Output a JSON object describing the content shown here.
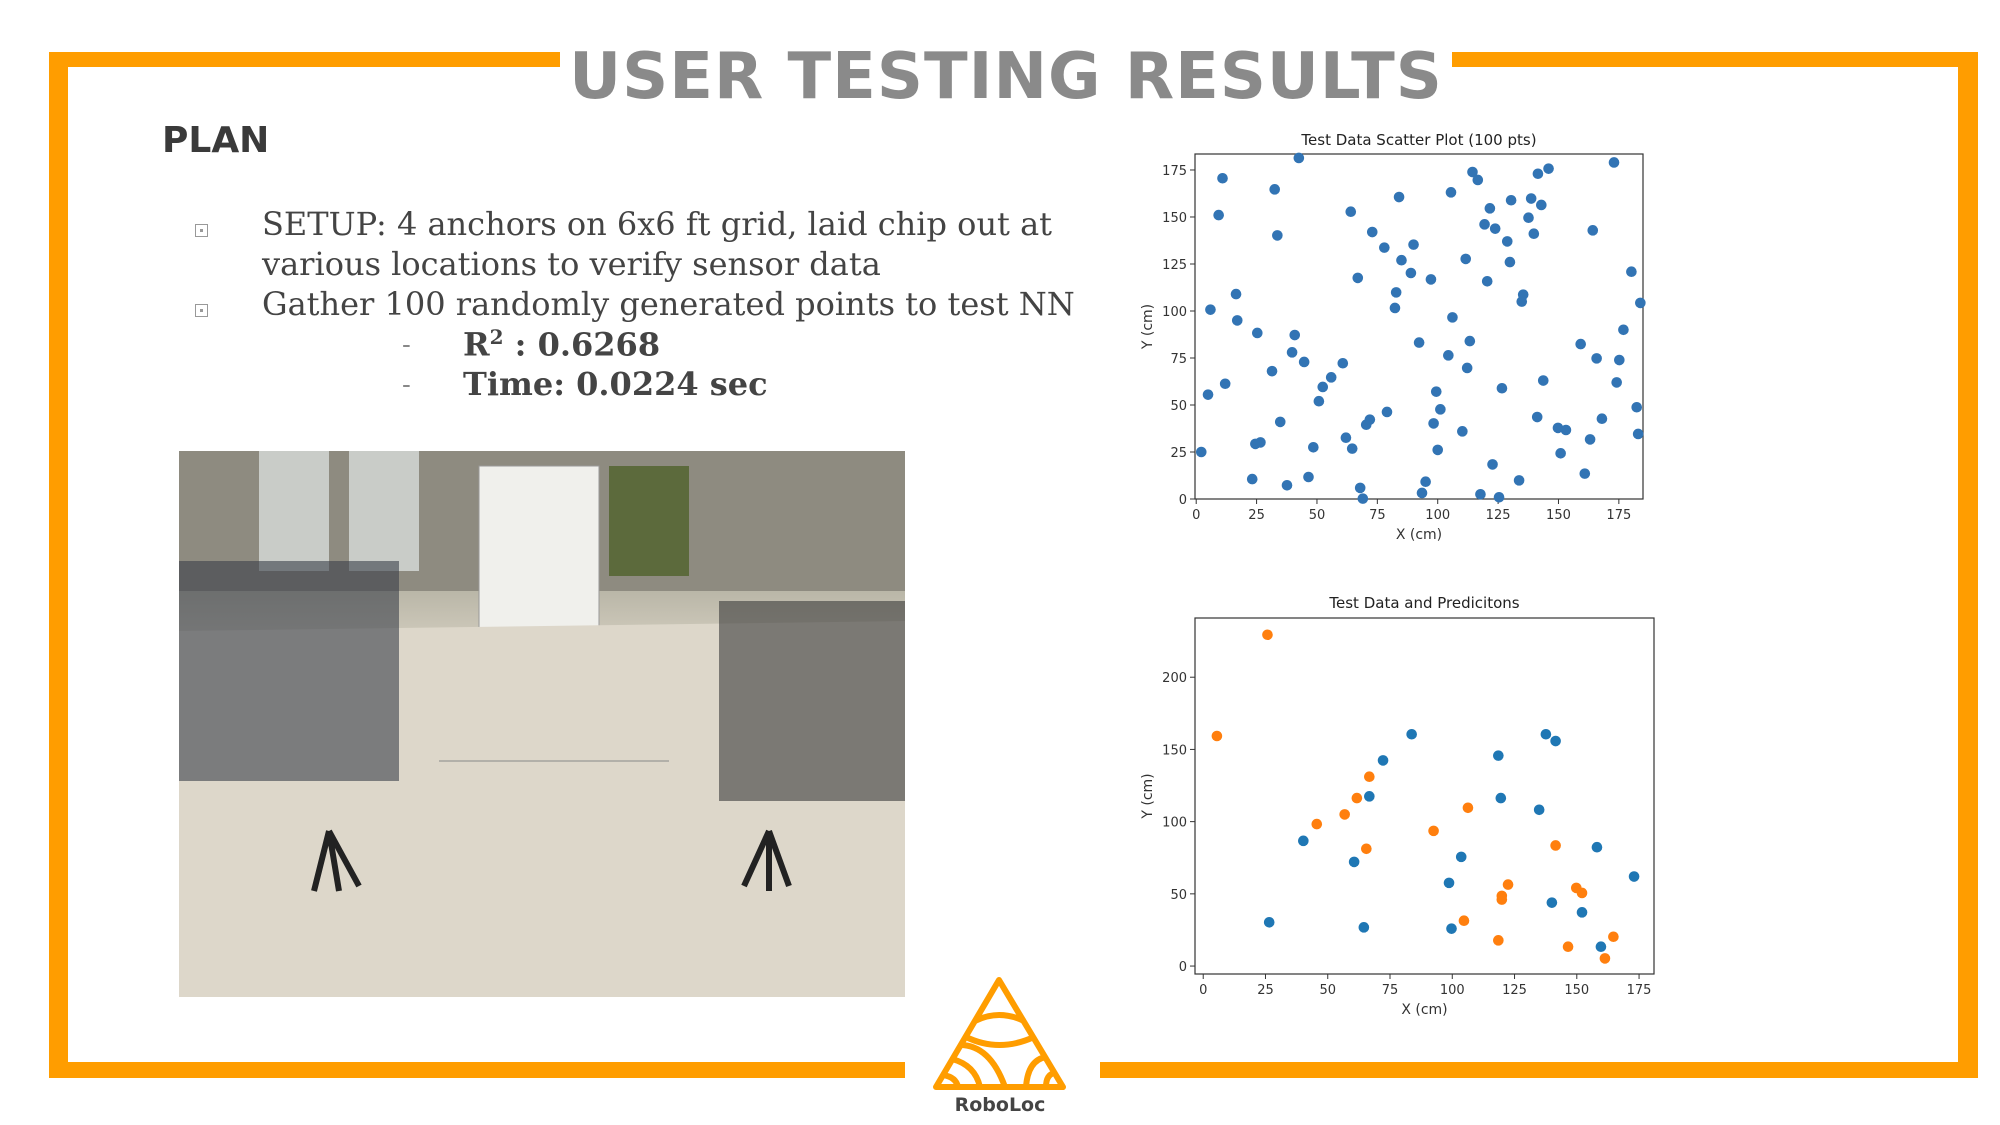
{
  "slide": {
    "title": "USER TESTING RESULTS",
    "section_heading": "PLAN",
    "bullets": [
      {
        "line1": "SETUP: 4 anchors on 6x6 ft grid, laid chip out at",
        "line2": "various locations to verify sensor data"
      },
      {
        "line1": "Gather 100 randomly generated points to test NN"
      }
    ],
    "sub_bullets": {
      "r2_label": "R",
      "r2_sup": "2",
      "r2_value": " : 0.6268",
      "time": "Time: 0.0224 sec"
    },
    "photo_alt": "photo",
    "logo_text": "RoboLoc",
    "accent_color": "#ff9d00"
  },
  "chart_data": [
    {
      "type": "scatter",
      "title": "Test Data Scatter Plot (100 pts)",
      "xlabel": "X (cm)",
      "ylabel": "Y (cm)",
      "xlim": [
        -0.5,
        185
      ],
      "ylim": [
        0,
        183.5
      ],
      "xticks": [
        0,
        25,
        50,
        75,
        100,
        125,
        150,
        175
      ],
      "yticks": [
        0,
        25,
        50,
        75,
        100,
        125,
        150,
        175
      ],
      "grid": false,
      "series": [
        {
          "color": "#3274b4",
          "points": [
            [
              2.1,
              25
            ],
            [
              4.9,
              55.5
            ],
            [
              5.9,
              100.7
            ],
            [
              9.3,
              151
            ],
            [
              10.9,
              170.6
            ],
            [
              12,
              61.3
            ],
            [
              16.5,
              109
            ],
            [
              17,
              95
            ],
            [
              23.2,
              10.6
            ],
            [
              24.5,
              29.3
            ],
            [
              26.6,
              30.1
            ],
            [
              25.3,
              88.3
            ],
            [
              31.4,
              68
            ],
            [
              32.5,
              164.7
            ],
            [
              33.6,
              140.2
            ],
            [
              34.8,
              41
            ],
            [
              37.6,
              7.3
            ],
            [
              39.7,
              78
            ],
            [
              40.8,
              87.2
            ],
            [
              42.5,
              181.4
            ],
            [
              44.7,
              72.9
            ],
            [
              46.5,
              11.7
            ],
            [
              48.5,
              27.5
            ],
            [
              50.8,
              52
            ],
            [
              52.4,
              59.6
            ],
            [
              55.9,
              64.7
            ],
            [
              60.7,
              72.2
            ],
            [
              62,
              32.6
            ],
            [
              64,
              152.8
            ],
            [
              64.6,
              26.8
            ],
            [
              66.9,
              117.6
            ],
            [
              67.9,
              5.9
            ],
            [
              69,
              0.2
            ],
            [
              70.4,
              39.5
            ],
            [
              71.9,
              42.2
            ],
            [
              72.9,
              142
            ],
            [
              77.9,
              133.7
            ],
            [
              79,
              46.3
            ],
            [
              82.3,
              101.6
            ],
            [
              82.8,
              109.9
            ],
            [
              84,
              160.6
            ],
            [
              85,
              127
            ],
            [
              88.9,
              120.2
            ],
            [
              90,
              135.3
            ],
            [
              92.3,
              83.2
            ],
            [
              93.5,
              3.2
            ],
            [
              95,
              9.2
            ],
            [
              97.2,
              116.8
            ],
            [
              98.3,
              40.2
            ],
            [
              99.4,
              57.1
            ],
            [
              100,
              26.1
            ],
            [
              101.1,
              47.7
            ],
            [
              105.5,
              163.1
            ],
            [
              106.1,
              96.6
            ],
            [
              104.4,
              76.4
            ],
            [
              110.2,
              36
            ],
            [
              111.6,
              127.7
            ],
            [
              112.2,
              69.7
            ],
            [
              113.3,
              84
            ],
            [
              114.4,
              173.9
            ],
            [
              116.6,
              169.7
            ],
            [
              117.7,
              2.5
            ],
            [
              119.4,
              146.1
            ],
            [
              120.5,
              115.8
            ],
            [
              121.6,
              154.6
            ],
            [
              122.7,
              18.4
            ],
            [
              123.8,
              143.8
            ],
            [
              125.4,
              0.9
            ],
            [
              126.6,
              58.9
            ],
            [
              128.8,
              137
            ],
            [
              129.9,
              126
            ],
            [
              130.4,
              158.9
            ],
            [
              133.7,
              9.9
            ],
            [
              134.8,
              105
            ],
            [
              135.4,
              108.7
            ],
            [
              137.6,
              149.6
            ],
            [
              138.7,
              159.8
            ],
            [
              139.8,
              141.1
            ],
            [
              141.5,
              173
            ],
            [
              141.2,
              43.6
            ],
            [
              142.9,
              156.4
            ],
            [
              143.7,
              63
            ],
            [
              145.9,
              175.7
            ],
            [
              149.8,
              37.8
            ],
            [
              150.9,
              24.3
            ],
            [
              153.1,
              36.7
            ],
            [
              159.2,
              82.4
            ],
            [
              160.9,
              13.5
            ],
            [
              163.1,
              31.7
            ],
            [
              164.2,
              142.9
            ],
            [
              165.8,
              74.8
            ],
            [
              168,
              42.7
            ],
            [
              173,
              179
            ],
            [
              174.1,
              62
            ],
            [
              175.2,
              73.9
            ],
            [
              176.9,
              90
            ],
            [
              180.2,
              120.9
            ],
            [
              182.4,
              48.8
            ],
            [
              183,
              34.6
            ],
            [
              183.9,
              104.3
            ]
          ]
        }
      ]
    },
    {
      "type": "scatter",
      "title": "Test Data and Predicitons",
      "xlabel": "X (cm)",
      "ylabel": "Y (cm)",
      "xlim": [
        -3.3,
        181
      ],
      "ylim": [
        -5.5,
        241
      ],
      "xticks": [
        0,
        25,
        50,
        75,
        100,
        125,
        150,
        175
      ],
      "yticks": [
        0,
        50,
        100,
        150,
        200
      ],
      "grid": false,
      "series": [
        {
          "color": "#1f77b4",
          "points": [
            [
              26.5,
              30.3
            ],
            [
              40.2,
              86.7
            ],
            [
              60.6,
              72.1
            ],
            [
              64.5,
              26.8
            ],
            [
              66.7,
              117.5
            ],
            [
              72.2,
              142.4
            ],
            [
              83.7,
              160.5
            ],
            [
              98.7,
              57.6
            ],
            [
              99.7,
              25.9
            ],
            [
              103.6,
              75.6
            ],
            [
              118.5,
              145.7
            ],
            [
              119.5,
              116.3
            ],
            [
              134.9,
              108.2
            ],
            [
              137.6,
              160.5
            ],
            [
              141.5,
              155.8
            ],
            [
              140,
              43.9
            ],
            [
              152.1,
              37.2
            ],
            [
              158.1,
              82.3
            ],
            [
              159.7,
              13.4
            ],
            [
              173,
              62
            ]
          ]
        },
        {
          "color": "#ff7f0e",
          "points": [
            [
              5.5,
              159.3
            ],
            [
              25.8,
              229.4
            ],
            [
              45.6,
              98.3
            ],
            [
              56.8,
              105
            ],
            [
              61.7,
              116.3
            ],
            [
              66.7,
              131.1
            ],
            [
              65.5,
              81.2
            ],
            [
              92.5,
              93.6
            ],
            [
              106.3,
              109.6
            ],
            [
              104.7,
              31.4
            ],
            [
              118.5,
              17.8
            ],
            [
              119.9,
              48.6
            ],
            [
              119.9,
              46
            ],
            [
              122.4,
              56.4
            ],
            [
              141.5,
              83.5
            ],
            [
              146.5,
              13.4
            ],
            [
              149.8,
              54.1
            ],
            [
              152.1,
              50.6
            ],
            [
              161.3,
              5.3
            ],
            [
              164.7,
              20.3
            ]
          ]
        }
      ]
    }
  ]
}
